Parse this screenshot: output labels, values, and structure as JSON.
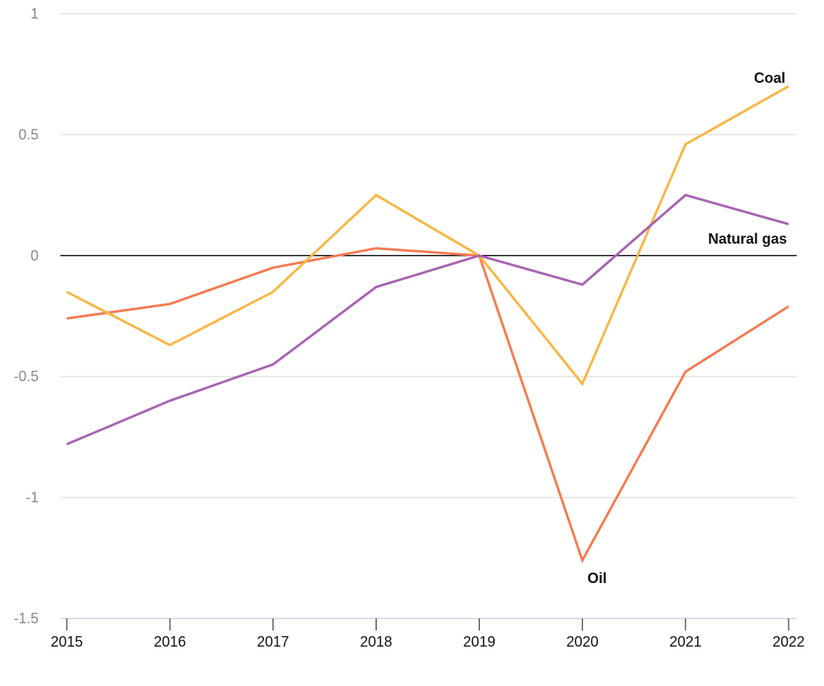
{
  "chart_data": {
    "type": "line",
    "title": "",
    "xlabel": "",
    "ylabel": "",
    "x": [
      2015,
      2016,
      2017,
      2018,
      2019,
      2020,
      2021,
      2022
    ],
    "ylim": [
      -1.5,
      1
    ],
    "yticks": [
      1,
      0.5,
      0,
      -0.5,
      -1,
      -1.5
    ],
    "ytick_labels": [
      "1",
      "0.5",
      "0",
      "-0.5",
      "-1",
      "-1.5"
    ],
    "xtick_labels": [
      "2015",
      "2016",
      "2017",
      "2018",
      "2019",
      "2020",
      "2021",
      "2022"
    ],
    "grid": true,
    "legend": "direct labels",
    "series": [
      {
        "name": "Oil",
        "color": "#f57a50",
        "values": [
          -0.26,
          -0.2,
          -0.05,
          0.03,
          0.0,
          -1.26,
          -0.48,
          -0.21
        ]
      },
      {
        "name": "Coal",
        "color": "#f9b544",
        "values": [
          -0.15,
          -0.37,
          -0.15,
          0.25,
          0.0,
          -0.53,
          0.46,
          0.7
        ]
      },
      {
        "name": "Natural gas",
        "color": "#a862b3",
        "values": [
          -0.78,
          -0.6,
          -0.45,
          -0.13,
          0.0,
          -0.12,
          0.25,
          0.13
        ]
      }
    ]
  }
}
